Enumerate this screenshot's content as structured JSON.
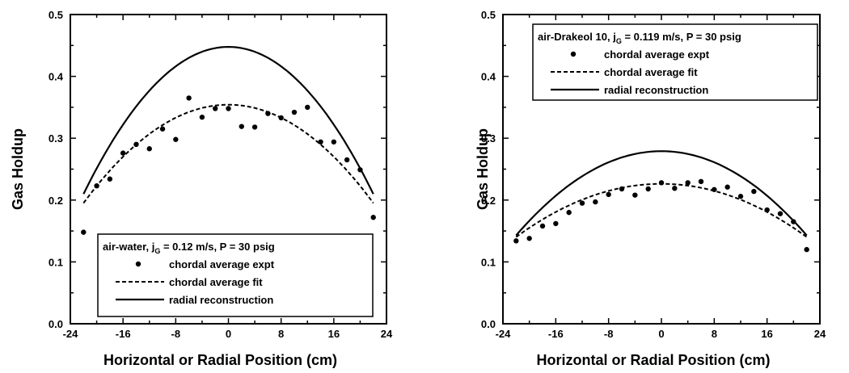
{
  "chart_data": [
    {
      "type": "scatter",
      "xlabel": "Horizontal or Radial Position (cm)",
      "ylabel": "Gas Holdup",
      "xlim": [
        -24,
        24
      ],
      "ylim": [
        0.0,
        0.5
      ],
      "xticks": [
        "-24",
        "-16",
        "-8",
        "0",
        "8",
        "16",
        "24"
      ],
      "yticks": [
        "0.0",
        "0.1",
        "0.2",
        "0.3",
        "0.4",
        "0.5"
      ],
      "legend": {
        "title_parts": [
          "air-water, j",
          "G",
          " = 0.12 m/s, P = 30 psig"
        ],
        "placement": "bottom-center",
        "entries": [
          "chordal average expt",
          "chordal average fit",
          "radial reconstruction"
        ]
      },
      "series": [
        {
          "name": "chordal average expt",
          "style": "points",
          "x": [
            -22,
            -20,
            -18,
            -16,
            -14,
            -12,
            -10,
            -8,
            -6,
            -4,
            -2,
            0,
            2,
            4,
            6,
            8,
            10,
            12,
            14,
            16,
            18,
            20,
            22
          ],
          "y": [
            0.148,
            0.223,
            0.234,
            0.276,
            0.29,
            0.283,
            0.315,
            0.298,
            0.365,
            0.334,
            0.348,
            0.348,
            0.319,
            0.318,
            0.34,
            0.333,
            0.342,
            0.35,
            0.294,
            0.294,
            0.265,
            0.249,
            0.172
          ]
        },
        {
          "name": "chordal average fit",
          "style": "dashed",
          "x": [
            -22,
            -20,
            -16,
            -12,
            -8,
            -4,
            0,
            4,
            8,
            12,
            16,
            20,
            22
          ],
          "y": [
            0.193,
            0.223,
            0.272,
            0.31,
            0.334,
            0.347,
            0.35,
            0.347,
            0.334,
            0.31,
            0.272,
            0.223,
            0.193
          ]
        },
        {
          "name": "radial reconstruction",
          "style": "solid",
          "x": [
            -22,
            -20,
            -16,
            -12,
            -8,
            -4,
            0,
            4,
            8,
            12,
            16,
            20,
            22
          ],
          "y": [
            0.208,
            0.251,
            0.324,
            0.38,
            0.418,
            0.437,
            0.444,
            0.437,
            0.418,
            0.38,
            0.324,
            0.251,
            0.208
          ]
        }
      ]
    },
    {
      "type": "scatter",
      "xlabel": "Horizontal or Radial Position (cm)",
      "ylabel": "Gas Holdup",
      "xlim": [
        -24,
        24
      ],
      "ylim": [
        0.0,
        0.5
      ],
      "xticks": [
        "-24",
        "-16",
        "-8",
        "0",
        "8",
        "16",
        "24"
      ],
      "yticks": [
        "0.0",
        "0.1",
        "0.2",
        "0.3",
        "0.4",
        "0.5"
      ],
      "legend": {
        "title_parts": [
          "air-Drakeol 10, j",
          "G",
          " = 0.119 m/s, P = 30 psig"
        ],
        "placement": "top-center",
        "entries": [
          "chordal average expt",
          "chordal average fit",
          "radial reconstruction"
        ]
      },
      "series": [
        {
          "name": "chordal average expt",
          "style": "points",
          "x": [
            -22,
            -20,
            -18,
            -16,
            -14,
            -12,
            -10,
            -8,
            -6,
            -4,
            -2,
            0,
            2,
            4,
            6,
            8,
            10,
            12,
            14,
            16,
            18,
            20,
            22
          ],
          "y": [
            0.134,
            0.138,
            0.158,
            0.162,
            0.18,
            0.195,
            0.197,
            0.209,
            0.218,
            0.208,
            0.218,
            0.228,
            0.219,
            0.228,
            0.23,
            0.217,
            0.221,
            0.206,
            0.214,
            0.184,
            0.178,
            0.165,
            0.12
          ]
        },
        {
          "name": "chordal average fit",
          "style": "dashed",
          "x": [
            -22,
            -20,
            -16,
            -12,
            -8,
            -4,
            0,
            4,
            8,
            12,
            16,
            20,
            22
          ],
          "y": [
            0.14,
            0.155,
            0.181,
            0.201,
            0.215,
            0.223,
            0.226,
            0.223,
            0.215,
            0.201,
            0.181,
            0.155,
            0.14
          ]
        },
        {
          "name": "radial reconstruction",
          "style": "solid",
          "x": [
            -22,
            -20,
            -16,
            -12,
            -8,
            -4,
            0,
            4,
            8,
            12,
            16,
            20,
            22
          ],
          "y": [
            0.145,
            0.166,
            0.205,
            0.236,
            0.261,
            0.276,
            0.282,
            0.276,
            0.261,
            0.236,
            0.205,
            0.166,
            0.145
          ]
        }
      ]
    }
  ]
}
